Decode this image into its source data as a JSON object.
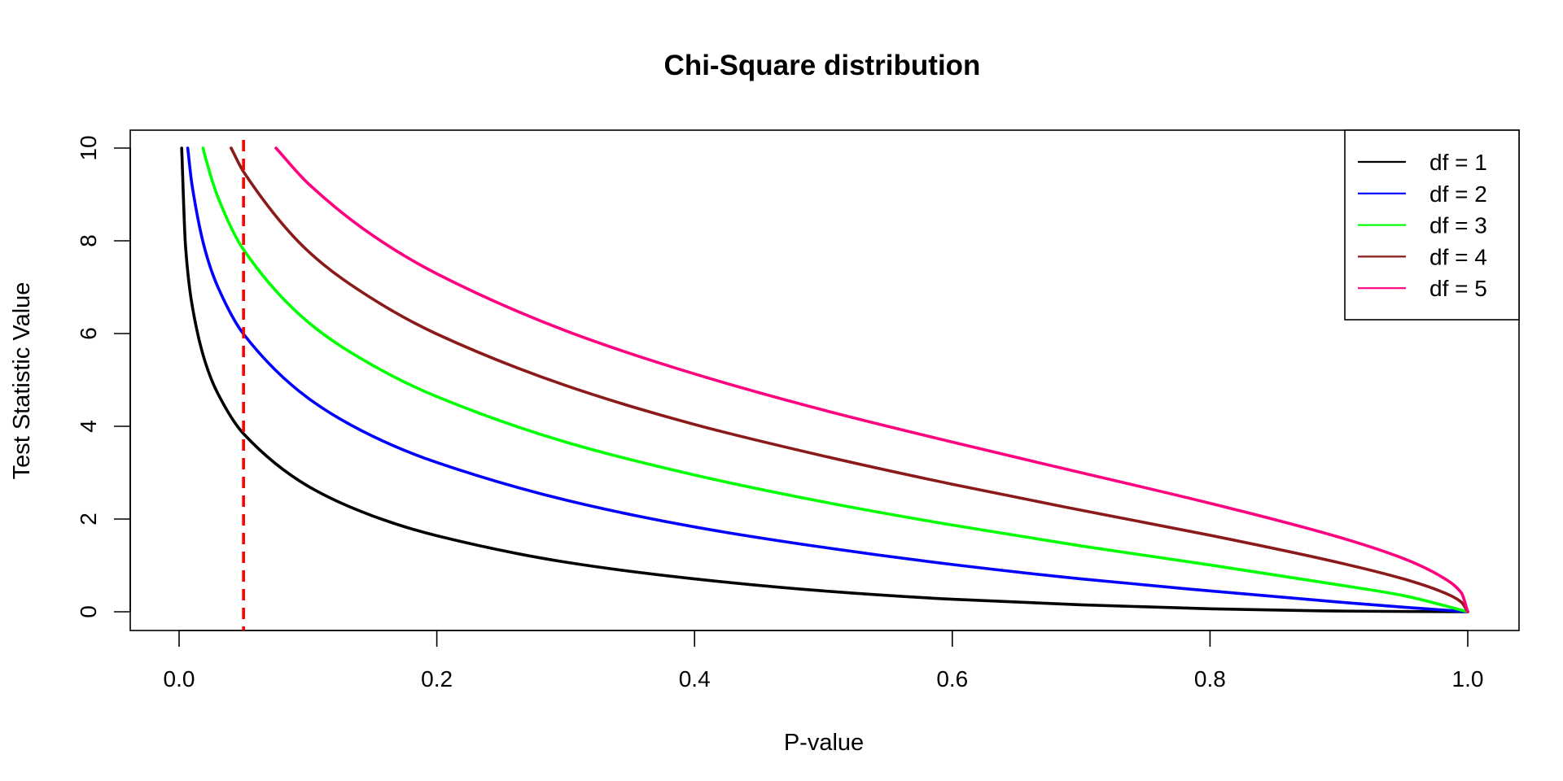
{
  "chart_data": {
    "type": "line",
    "title": "Chi-Square distribution",
    "xlabel": "P-value",
    "ylabel": "Test Statistic Value",
    "xlim": [
      0.0,
      1.0
    ],
    "ylim": [
      0,
      10
    ],
    "grid": false,
    "legend_position": "top-right",
    "x_ticks": [
      0.0,
      0.2,
      0.4,
      0.6,
      0.8,
      1.0
    ],
    "x_tick_labels": [
      "0.0",
      "0.2",
      "0.4",
      "0.6",
      "0.8",
      "1.0"
    ],
    "y_ticks": [
      0,
      2,
      4,
      6,
      8,
      10
    ],
    "y_tick_labels": [
      "0",
      "2",
      "4",
      "6",
      "8",
      "10"
    ],
    "series": [
      {
        "name": "df = 1",
        "df": 1,
        "color": "#000000",
        "points": [
          [
            0.002,
            10.0
          ],
          [
            0.005,
            7.88
          ],
          [
            0.01,
            6.63
          ],
          [
            0.02,
            5.41
          ],
          [
            0.03,
            4.71
          ],
          [
            0.05,
            3.84
          ],
          [
            0.1,
            2.71
          ],
          [
            0.15,
            2.07
          ],
          [
            0.2,
            1.64
          ],
          [
            0.3,
            1.07
          ],
          [
            0.4,
            0.71
          ],
          [
            0.5,
            0.45
          ],
          [
            0.6,
            0.27
          ],
          [
            0.7,
            0.15
          ],
          [
            0.8,
            0.064
          ],
          [
            0.9,
            0.016
          ],
          [
            1.0,
            0.0
          ]
        ]
      },
      {
        "name": "df = 2",
        "df": 2,
        "color": "#0000FF",
        "points": [
          [
            0.0067,
            10.0
          ],
          [
            0.01,
            9.21
          ],
          [
            0.02,
            7.82
          ],
          [
            0.03,
            7.01
          ],
          [
            0.05,
            5.99
          ],
          [
            0.1,
            4.61
          ],
          [
            0.15,
            3.79
          ],
          [
            0.2,
            3.22
          ],
          [
            0.3,
            2.41
          ],
          [
            0.4,
            1.83
          ],
          [
            0.5,
            1.39
          ],
          [
            0.6,
            1.02
          ],
          [
            0.7,
            0.71
          ],
          [
            0.8,
            0.45
          ],
          [
            0.9,
            0.21
          ],
          [
            0.95,
            0.1
          ],
          [
            1.0,
            0.0
          ]
        ]
      },
      {
        "name": "df = 3",
        "df": 3,
        "color": "#00FF00",
        "points": [
          [
            0.0186,
            10.0
          ],
          [
            0.02,
            9.84
          ],
          [
            0.03,
            8.95
          ],
          [
            0.05,
            7.81
          ],
          [
            0.1,
            6.25
          ],
          [
            0.15,
            5.32
          ],
          [
            0.2,
            4.64
          ],
          [
            0.3,
            3.66
          ],
          [
            0.4,
            2.95
          ],
          [
            0.5,
            2.37
          ],
          [
            0.6,
            1.87
          ],
          [
            0.7,
            1.42
          ],
          [
            0.8,
            1.01
          ],
          [
            0.9,
            0.58
          ],
          [
            0.95,
            0.35
          ],
          [
            1.0,
            0.0
          ]
        ]
      },
      {
        "name": "df = 4",
        "df": 4,
        "color": "#8B1A1A",
        "points": [
          [
            0.0404,
            10.0
          ],
          [
            0.05,
            9.49
          ],
          [
            0.1,
            7.78
          ],
          [
            0.15,
            6.75
          ],
          [
            0.2,
            5.99
          ],
          [
            0.3,
            4.88
          ],
          [
            0.4,
            4.04
          ],
          [
            0.5,
            3.36
          ],
          [
            0.6,
            2.75
          ],
          [
            0.7,
            2.19
          ],
          [
            0.8,
            1.65
          ],
          [
            0.9,
            1.06
          ],
          [
            0.95,
            0.71
          ],
          [
            0.98,
            0.43
          ],
          [
            0.995,
            0.21
          ],
          [
            1.0,
            0.0
          ]
        ]
      },
      {
        "name": "df = 5",
        "df": 5,
        "color": "#FF0080",
        "points": [
          [
            0.0752,
            10.0
          ],
          [
            0.1,
            9.24
          ],
          [
            0.15,
            8.12
          ],
          [
            0.2,
            7.29
          ],
          [
            0.3,
            6.06
          ],
          [
            0.4,
            5.13
          ],
          [
            0.5,
            4.35
          ],
          [
            0.6,
            3.66
          ],
          [
            0.7,
            3.0
          ],
          [
            0.8,
            2.34
          ],
          [
            0.9,
            1.61
          ],
          [
            0.95,
            1.15
          ],
          [
            0.98,
            0.75
          ],
          [
            0.995,
            0.41
          ],
          [
            1.0,
            0.0
          ]
        ]
      }
    ],
    "reference_lines": [
      {
        "axis": "x",
        "value": 0.05,
        "color": "#FF0000",
        "style": "dashed"
      }
    ]
  }
}
